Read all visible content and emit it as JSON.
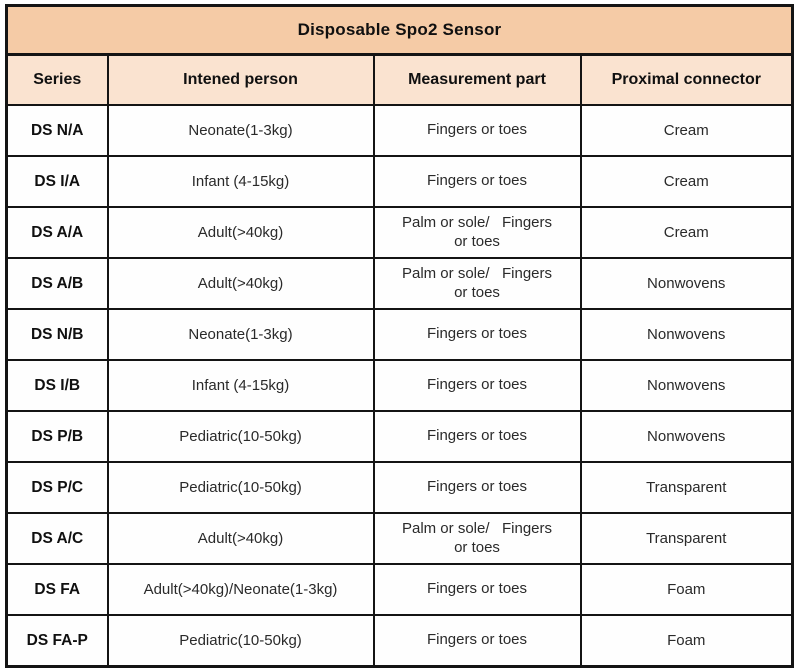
{
  "table": {
    "title": "Disposable Spo2 Sensor",
    "columns": {
      "series": "Series",
      "person": "Intened person",
      "measurement": "Measurement part",
      "connector": "Proximal connector"
    },
    "rows": [
      {
        "series": "DS N/A",
        "person": "Neonate(1-3kg)",
        "measurement": "Fingers or toes",
        "connector": "Cream"
      },
      {
        "series": "DS I/A",
        "person": "Infant (4-15kg)",
        "measurement": "Fingers or toes",
        "connector": "Cream"
      },
      {
        "series": "DS A/A",
        "person": "Adult(>40kg)",
        "measurement": "Palm or sole/   Fingers\nor toes",
        "connector": "Cream"
      },
      {
        "series": "DS A/B",
        "person": "Adult(>40kg)",
        "measurement": "Palm or sole/   Fingers\nor toes",
        "connector": "Nonwovens"
      },
      {
        "series": "DS N/B",
        "person": "Neonate(1-3kg)",
        "measurement": "Fingers or toes",
        "connector": "Nonwovens"
      },
      {
        "series": "DS I/B",
        "person": "Infant (4-15kg)",
        "measurement": "Fingers or toes",
        "connector": "Nonwovens"
      },
      {
        "series": "DS P/B",
        "person": "Pediatric(10-50kg)",
        "measurement": "Fingers or toes",
        "connector": "Nonwovens"
      },
      {
        "series": "DS P/C",
        "person": "Pediatric(10-50kg)",
        "measurement": "Fingers or toes",
        "connector": "Transparent"
      },
      {
        "series": "DS A/C",
        "person": "Adult(>40kg)",
        "measurement": "Palm or sole/   Fingers\nor toes",
        "connector": "Transparent"
      },
      {
        "series": "DS FA",
        "person": "Adult(>40kg)/Neonate(1-3kg)",
        "measurement": "Fingers or toes",
        "connector": "Foam"
      },
      {
        "series": "DS FA-P",
        "person": "Pediatric(10-50kg)",
        "measurement": "Fingers or toes",
        "connector": "Foam"
      }
    ],
    "colors": {
      "title_bg": "#f5cba6",
      "header_bg": "#fae3d0",
      "body_bg": "#fefefe",
      "border": "#141414",
      "text": "#2a2a2a"
    }
  }
}
